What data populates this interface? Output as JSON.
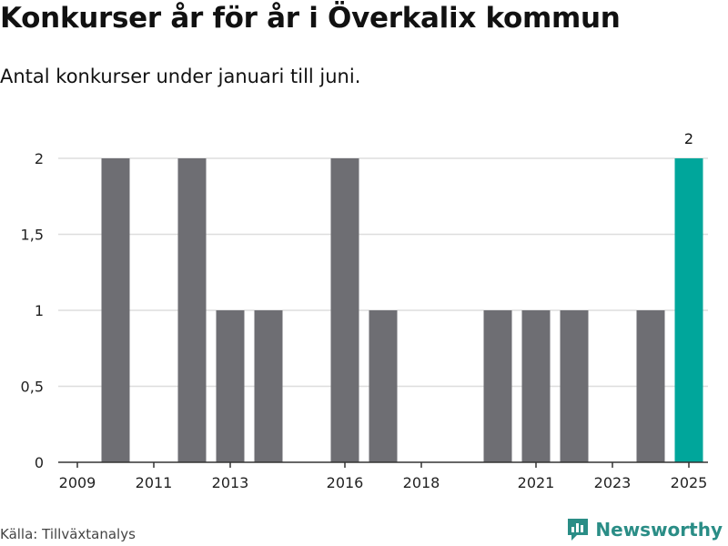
{
  "header": {
    "title": "Konkurser år för år i Överkalix kommun",
    "subtitle": "Antal konkurser under januari till juni."
  },
  "footer": {
    "source": "Källa: Tillväxtanalys",
    "brand": "Newsworthy",
    "brand_icon": "newsworthy-logo-icon"
  },
  "colors": {
    "bar": "#6e6e73",
    "highlight": "#00a69b",
    "grid": "#dddddd",
    "axis": "#333333",
    "brand": "#2a8d86"
  },
  "chart_data": {
    "type": "bar",
    "title": "Konkurser år för år i Överkalix kommun",
    "subtitle": "Antal konkurser under januari till juni.",
    "xlabel": "",
    "ylabel": "",
    "categories": [
      "2009",
      "2010",
      "2011",
      "2012",
      "2013",
      "2014",
      "2015",
      "2016",
      "2017",
      "2018",
      "2019",
      "2020",
      "2021",
      "2022",
      "2023",
      "2024",
      "2025"
    ],
    "values": [
      0,
      2,
      0,
      2,
      1,
      1,
      0,
      2,
      1,
      0,
      0,
      1,
      1,
      1,
      0,
      1,
      2
    ],
    "highlight_category": "2025",
    "xticks": [
      "2009",
      "2011",
      "2013",
      "2016",
      "2018",
      "2021",
      "2023",
      "2025"
    ],
    "yticks": [
      0,
      0.5,
      1,
      1.5,
      2
    ],
    "ytick_labels": [
      "0",
      "0,5",
      "1",
      "1,5",
      "2"
    ],
    "ylim": [
      0,
      2
    ],
    "grid": true,
    "data_labels": [
      {
        "category": "2025",
        "text": "2"
      }
    ]
  }
}
